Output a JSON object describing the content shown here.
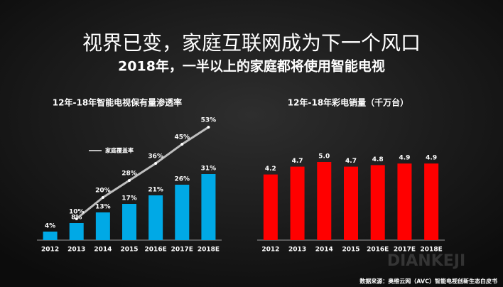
{
  "header": {
    "title": "视界已变，家庭互联网成为下一个风口",
    "subtitle": "2018年，一半以上的家庭都将使用智能电视"
  },
  "chart_data": [
    {
      "type": "bar",
      "title": "12年-18年智能电视保有量渗透率",
      "categories": [
        "2012",
        "2013",
        "2014",
        "2015",
        "2016E",
        "2017E",
        "2018E"
      ],
      "series": [
        {
          "type": "bar",
          "color": "#00a9e6",
          "values": [
            4,
            8,
            13,
            17,
            21,
            26,
            31
          ],
          "value_labels": [
            "4%",
            "8%",
            "13%",
            "17%",
            "21%",
            "26%",
            "31%"
          ]
        },
        {
          "type": "line",
          "name": "家庭覆盖率",
          "color": "#bfbfbf",
          "values": [
            null,
            10,
            20,
            28,
            36,
            45,
            53
          ],
          "value_labels": [
            null,
            "10%",
            "20%",
            "28%",
            "36%",
            "45%",
            "53%"
          ]
        }
      ]
    },
    {
      "type": "bar",
      "title": "12年-18年彩电销量（千万台）",
      "categories": [
        "2012",
        "2013",
        "2014",
        "2015",
        "2016E",
        "2017E",
        "2018E"
      ],
      "values": [
        4.2,
        4.7,
        5.0,
        4.7,
        4.8,
        4.9,
        4.9
      ],
      "value_labels": [
        "4.2",
        "4.7",
        "5.0",
        "4.7",
        "4.8",
        "4.9",
        "4.9"
      ],
      "color": "#ff0000"
    }
  ],
  "footer": {
    "source": "数据来源：奥维云网（AVC）智能电视创新生态白皮书",
    "watermark": "DIANKEJI"
  }
}
